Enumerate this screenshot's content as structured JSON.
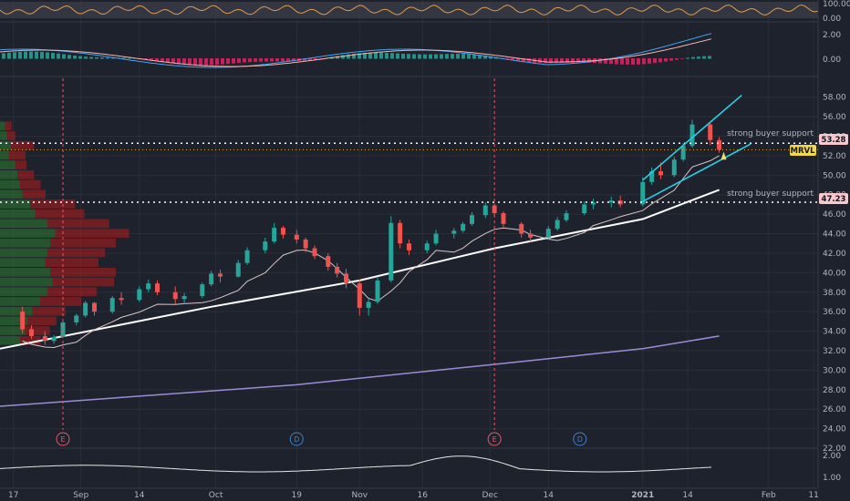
{
  "ticker_tag": "MRVL",
  "colors": {
    "bg": "#1e222d",
    "grid": "#2a2e39",
    "up": "#26a69a",
    "down": "#ef5350",
    "sma_white": "#ffffff",
    "sma_purple": "#9c8cd8",
    "sma_thin": "#d8c6c6",
    "wedge": "#2ad0e8",
    "support_line": "#ffffff",
    "orange_line": "#d9a441",
    "ticker_tag_bg": "#f5d84a",
    "price_tag_bg": "#f8c8cc"
  },
  "rsi_axis": {
    "labels": [
      "100.00",
      "0.00"
    ]
  },
  "macd_axis": {
    "labels": [
      "2.00",
      "0.00"
    ]
  },
  "price_axis": {
    "labels": [
      "58.00",
      "56.00",
      "54.00",
      "52.00",
      "50.00",
      "48.00",
      "46.00",
      "44.00",
      "42.00",
      "40.00",
      "38.00",
      "36.00",
      "34.00",
      "32.00",
      "30.00",
      "28.00",
      "26.00",
      "24.00",
      "22.00"
    ]
  },
  "bottom_axis": {
    "labels": [
      "2.00",
      "1.00"
    ]
  },
  "x_axis": {
    "labels": [
      "17",
      "Sep",
      "14",
      "Oct",
      "19",
      "Nov",
      "16",
      "Dec",
      "14",
      "2021",
      "14",
      "Feb",
      "11"
    ]
  },
  "annotations": {
    "support_upper": "strong buyer support",
    "support_lower": "strong buyer support"
  },
  "price_tags": {
    "upper": "53.28",
    "lower": "47.23"
  },
  "events": [
    "E",
    "D",
    "E",
    "D"
  ],
  "chart_data": {
    "type": "candlestick",
    "title": "",
    "ticker": "MRVL",
    "x_start": "2020-08-14",
    "x_end": "2021-02-12",
    "ylim": [
      22,
      59
    ],
    "ohlc": [
      [
        "2020-08-19",
        36.0,
        36.5,
        33.8,
        34.2
      ],
      [
        "2020-08-21",
        34.2,
        34.6,
        33.2,
        33.5
      ],
      [
        "2020-08-24",
        33.5,
        34.0,
        32.6,
        33.0
      ],
      [
        "2020-08-26",
        33.0,
        33.6,
        32.7,
        33.4
      ],
      [
        "2020-08-28",
        33.4,
        35.1,
        33.3,
        34.9
      ],
      [
        "2020-08-31",
        34.9,
        35.8,
        34.6,
        35.6
      ],
      [
        "2020-09-02",
        35.6,
        37.1,
        35.4,
        36.9
      ],
      [
        "2020-09-04",
        36.9,
        37.0,
        35.6,
        36.0
      ],
      [
        "2020-09-08",
        36.0,
        37.6,
        35.8,
        37.4
      ],
      [
        "2020-09-10",
        37.4,
        38.0,
        36.7,
        37.2
      ],
      [
        "2020-09-14",
        37.2,
        38.6,
        37.0,
        38.3
      ],
      [
        "2020-09-16",
        38.3,
        39.3,
        38.0,
        38.9
      ],
      [
        "2020-09-18",
        38.9,
        39.2,
        37.7,
        38.0
      ],
      [
        "2020-09-22",
        38.0,
        38.6,
        36.8,
        37.3
      ],
      [
        "2020-09-24",
        37.3,
        37.9,
        36.8,
        37.6
      ],
      [
        "2020-09-28",
        37.6,
        39.0,
        37.4,
        38.8
      ],
      [
        "2020-09-30",
        38.8,
        40.2,
        38.6,
        39.9
      ],
      [
        "2020-10-02",
        39.9,
        40.3,
        39.0,
        39.6
      ],
      [
        "2020-10-06",
        39.6,
        41.3,
        39.5,
        41.0
      ],
      [
        "2020-10-08",
        41.0,
        42.6,
        40.8,
        42.3
      ],
      [
        "2020-10-12",
        42.3,
        43.6,
        42.0,
        43.2
      ],
      [
        "2020-10-14",
        43.2,
        45.1,
        43.0,
        44.6
      ],
      [
        "2020-10-16",
        44.6,
        44.8,
        43.5,
        43.9
      ],
      [
        "2020-10-19",
        43.9,
        44.4,
        43.0,
        43.4
      ],
      [
        "2020-10-21",
        43.4,
        43.6,
        42.1,
        42.5
      ],
      [
        "2020-10-23",
        42.5,
        42.8,
        41.4,
        41.7
      ],
      [
        "2020-10-26",
        41.7,
        42.0,
        40.2,
        40.6
      ],
      [
        "2020-10-28",
        40.6,
        41.0,
        39.5,
        39.9
      ],
      [
        "2020-10-30",
        39.9,
        40.4,
        38.4,
        38.9
      ],
      [
        "2020-11-02",
        38.9,
        39.3,
        35.6,
        36.4
      ],
      [
        "2020-11-04",
        36.4,
        37.3,
        35.6,
        37.0
      ],
      [
        "2020-11-06",
        37.0,
        39.5,
        36.8,
        39.2
      ],
      [
        "2020-11-09",
        39.2,
        45.8,
        39.0,
        45.1
      ],
      [
        "2020-11-11",
        45.1,
        45.4,
        42.5,
        43.0
      ],
      [
        "2020-11-13",
        43.0,
        43.4,
        41.8,
        42.3
      ],
      [
        "2020-11-17",
        42.3,
        43.3,
        42.0,
        43.0
      ],
      [
        "2020-11-19",
        43.0,
        44.4,
        42.8,
        44.0
      ],
      [
        "2020-11-23",
        44.0,
        44.6,
        43.5,
        44.3
      ],
      [
        "2020-11-25",
        44.3,
        45.2,
        44.1,
        45.0
      ],
      [
        "2020-11-27",
        45.0,
        46.2,
        44.8,
        45.9
      ],
      [
        "2020-11-30",
        45.9,
        47.2,
        45.6,
        46.9
      ],
      [
        "2020-12-02",
        46.9,
        47.1,
        45.8,
        46.1
      ],
      [
        "2020-12-04",
        46.1,
        46.3,
        44.6,
        45.0
      ],
      [
        "2020-12-08",
        45.0,
        45.2,
        43.6,
        44.0
      ],
      [
        "2020-12-10",
        44.0,
        44.4,
        43.2,
        43.6
      ],
      [
        "2020-12-14",
        43.6,
        44.8,
        43.4,
        44.5
      ],
      [
        "2020-12-16",
        44.5,
        45.7,
        44.3,
        45.4
      ],
      [
        "2020-12-18",
        45.4,
        46.4,
        45.2,
        46.1
      ],
      [
        "2020-12-22",
        46.1,
        47.3,
        45.9,
        47.0
      ],
      [
        "2020-12-24",
        47.0,
        47.6,
        46.5,
        47.2
      ],
      [
        "2020-12-28",
        47.2,
        47.8,
        46.7,
        47.4
      ],
      [
        "2020-12-30",
        47.4,
        47.9,
        46.7,
        47.0
      ],
      [
        "2021-01-04",
        47.0,
        49.8,
        46.8,
        49.3
      ],
      [
        "2021-01-06",
        49.3,
        50.8,
        49.0,
        50.4
      ],
      [
        "2021-01-08",
        50.4,
        51.3,
        49.6,
        50.0
      ],
      [
        "2021-01-11",
        50.0,
        51.9,
        49.8,
        51.6
      ],
      [
        "2021-01-13",
        51.6,
        53.3,
        51.4,
        53.0
      ],
      [
        "2021-01-15",
        53.0,
        55.7,
        52.8,
        55.2
      ],
      [
        "2021-01-19",
        55.2,
        55.4,
        53.1,
        53.6
      ],
      [
        "2021-01-21",
        53.6,
        53.9,
        52.3,
        52.6
      ]
    ],
    "overlays": [
      {
        "name": "",
        "color": "#ffffff",
        "points": [
          [
            "2020-08-14",
            32.2
          ],
          [
            "2020-09-30",
            36.5
          ],
          [
            "2020-11-02",
            39.2
          ],
          [
            "2020-12-02",
            42.5
          ],
          [
            "2021-01-04",
            45.5
          ],
          [
            "2021-01-21",
            48.5
          ]
        ]
      },
      {
        "name": "",
        "color": "#9c8cd8",
        "points": [
          [
            "2020-08-14",
            26.3
          ],
          [
            "2020-10-19",
            28.5
          ],
          [
            "2020-12-02",
            30.6
          ],
          [
            "2021-01-04",
            32.2
          ],
          [
            "2021-01-21",
            33.5
          ]
        ]
      }
    ],
    "support_levels": [
      53.28,
      47.23
    ],
    "annotations": [
      "strong buyer support",
      "strong buyer support"
    ]
  }
}
